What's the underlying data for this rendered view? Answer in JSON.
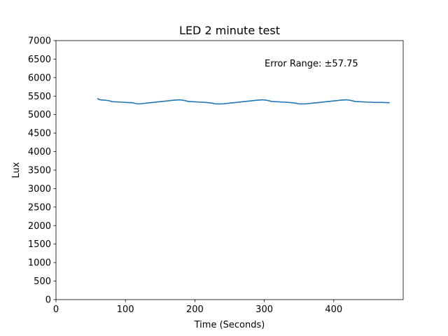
{
  "chart_data": {
    "type": "line",
    "title": "LED 2 minute test",
    "xlabel": "Time (Seconds)",
    "ylabel": "Lux",
    "xlim": [
      0,
      500
    ],
    "ylim": [
      0,
      7000
    ],
    "xticks": [
      0,
      100,
      200,
      300,
      400
    ],
    "yticks": [
      0,
      500,
      1000,
      1500,
      2000,
      2500,
      3000,
      3500,
      4000,
      4500,
      5000,
      5500,
      6000,
      6500,
      7000
    ],
    "grid": false,
    "annotation": "Error Range: ±57.75",
    "series_color": "#1f77b4",
    "series": [
      {
        "x": [
          60,
          62,
          65,
          70,
          75,
          78,
          80,
          85,
          90,
          95,
          100,
          105,
          108,
          110,
          115,
          118,
          120,
          125,
          130,
          140,
          150,
          160,
          170,
          178,
          180,
          183,
          185,
          188,
          190,
          195,
          200,
          205,
          210,
          215,
          218,
          220,
          225,
          228,
          230,
          235,
          240,
          250,
          260,
          270,
          280,
          290,
          298,
          300,
          303,
          305,
          308,
          310,
          315,
          320,
          325,
          330,
          335,
          338,
          340,
          345,
          348,
          350,
          355,
          360,
          370,
          380,
          390,
          400,
          410,
          418,
          420,
          423,
          425,
          428,
          430,
          435,
          440,
          445,
          450,
          455,
          458,
          460,
          465,
          470,
          475,
          478,
          480
        ],
        "y": [
          5430,
          5410,
          5395,
          5390,
          5380,
          5370,
          5350,
          5345,
          5340,
          5335,
          5330,
          5325,
          5325,
          5320,
          5300,
          5290,
          5290,
          5300,
          5310,
          5330,
          5350,
          5370,
          5390,
          5400,
          5395,
          5390,
          5380,
          5370,
          5355,
          5350,
          5345,
          5340,
          5335,
          5330,
          5325,
          5320,
          5310,
          5295,
          5290,
          5290,
          5290,
          5310,
          5330,
          5350,
          5370,
          5390,
          5400,
          5395,
          5390,
          5380,
          5370,
          5355,
          5350,
          5345,
          5340,
          5335,
          5330,
          5325,
          5320,
          5310,
          5295,
          5290,
          5290,
          5290,
          5310,
          5330,
          5350,
          5370,
          5390,
          5400,
          5395,
          5390,
          5380,
          5370,
          5355,
          5350,
          5345,
          5340,
          5335,
          5335,
          5330,
          5330,
          5330,
          5330,
          5325,
          5325,
          5320
        ]
      }
    ]
  }
}
